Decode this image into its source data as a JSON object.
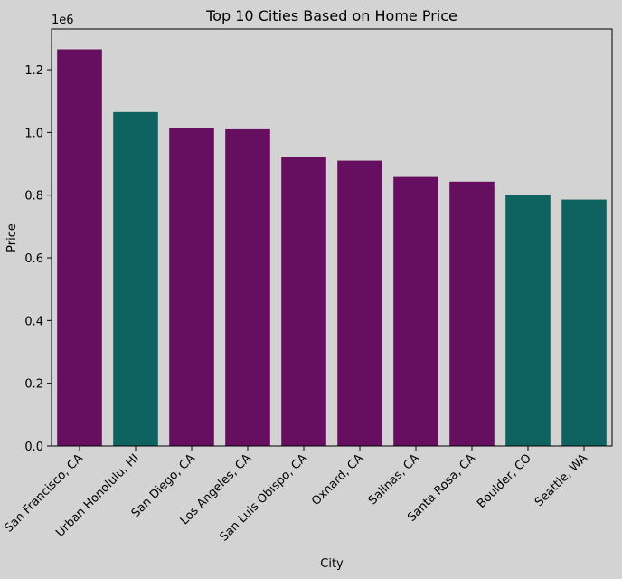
{
  "chart_data": {
    "type": "bar",
    "title": "Top 10 Cities Based on Home Price",
    "xlabel": "City",
    "ylabel": "Price",
    "y_offset_label": "1e6",
    "categories": [
      "San Francisco, CA",
      "Urban Honolulu, HI",
      "San Diego, CA",
      "Los Angeles, CA",
      "San Luis Obispo, CA",
      "Oxnard, CA",
      "Salinas, CA",
      "Santa Rosa, CA",
      "Boulder, CO",
      "Seattle, WA"
    ],
    "values": [
      1265000,
      1065000,
      1015000,
      1010000,
      922000,
      910000,
      858000,
      843000,
      802000,
      786000
    ],
    "bar_colors": [
      "#660e60",
      "#0e6360",
      "#660e60",
      "#660e60",
      "#660e60",
      "#660e60",
      "#660e60",
      "#660e60",
      "#0e6360",
      "#0e6360"
    ],
    "ylim": [
      0,
      1330000
    ],
    "yticks": [
      0,
      200000,
      400000,
      600000,
      800000,
      1000000,
      1200000
    ],
    "ytick_labels": [
      "0.0",
      "0.2",
      "0.4",
      "0.6",
      "0.8",
      "1.0",
      "1.2"
    ],
    "grid": false,
    "background": "#d3d3d3"
  }
}
